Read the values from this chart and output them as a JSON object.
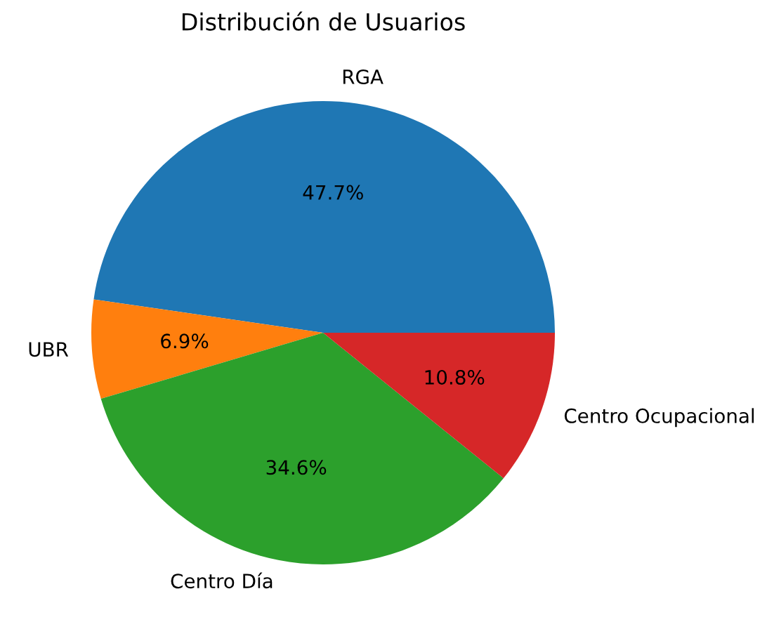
{
  "chart_data": {
    "type": "pie",
    "title": "Distribución de Usuarios",
    "categories": [
      "RGA",
      "UBR",
      "Centro Día",
      "Centro Ocupacional"
    ],
    "values": [
      47.7,
      6.9,
      34.6,
      10.8
    ],
    "colors": [
      "#1f77b4",
      "#ff7f0e",
      "#2ca02c",
      "#d62728"
    ],
    "value_labels": [
      "47.7%",
      "6.9%",
      "34.6%",
      "10.8%"
    ]
  }
}
